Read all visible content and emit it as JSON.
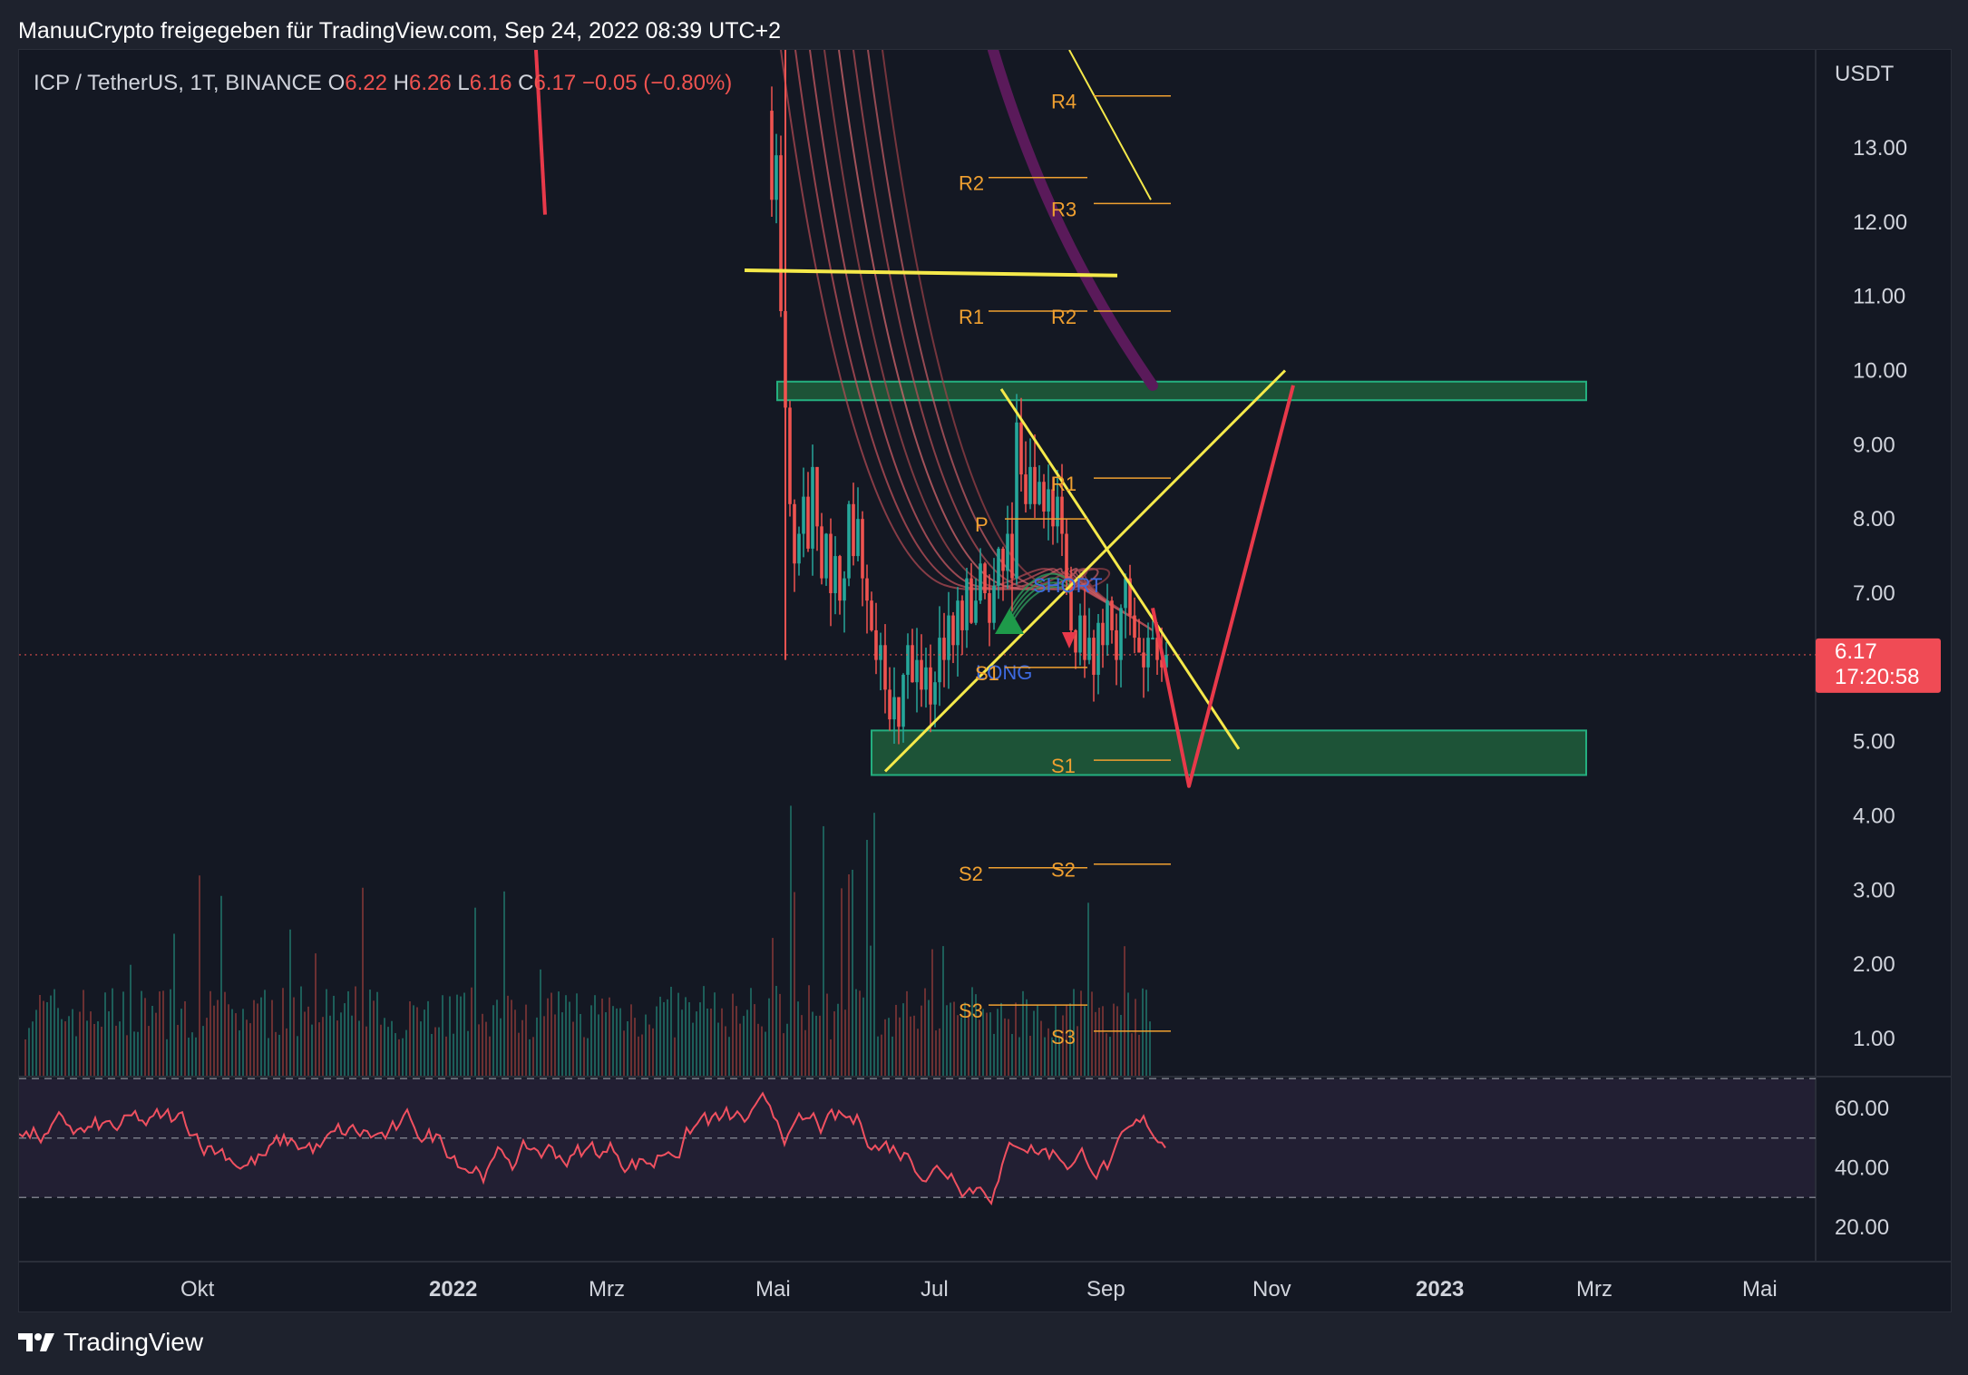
{
  "header": {
    "credit": "ManuuCrypto freigegeben für TradingView.com, Sep 24, 2022 08:39 UTC+2"
  },
  "legend": {
    "symbol": "ICP / TetherUS, 1T, BINANCE",
    "open_label": "O",
    "open": "6.22",
    "high_label": "H",
    "high": "6.26",
    "low_label": "L",
    "low": "6.16",
    "close_label": "C",
    "close": "6.17",
    "change": "−0.05 (−0.80%)"
  },
  "price_axis": {
    "currency": "USDT",
    "ticks": [
      "13.00",
      "12.00",
      "11.00",
      "10.00",
      "9.00",
      "8.00",
      "7.00",
      "5.00",
      "4.00",
      "3.00",
      "2.00",
      "1.00"
    ],
    "last_price": "6.17",
    "countdown": "17:20:58"
  },
  "rsi_axis": {
    "ticks": [
      "60.00",
      "40.00",
      "20.00"
    ]
  },
  "time_axis": {
    "labels": [
      "Okt",
      "2022",
      "Mrz",
      "Mai",
      "Jul",
      "Sep",
      "Nov",
      "2023",
      "Mrz",
      "Mai"
    ]
  },
  "annotations": {
    "pivots_left": [
      "R2",
      "R1",
      "P",
      "S1",
      "S2",
      "S3"
    ],
    "pivots_right": [
      "R4",
      "R3",
      "R2",
      "R1",
      "S1",
      "S2",
      "S3"
    ],
    "long_label": "LONG",
    "short_label": "SHORT"
  },
  "footer": {
    "brand": "TradingView"
  },
  "colors": {
    "background": "#141823",
    "up": "#26a69a",
    "down": "#ef5350",
    "yellow": "#f5e94a",
    "orange": "#f0a030",
    "zone": "#1e5a3a",
    "zone_border": "#26c08a",
    "purple": "#5a1a5a",
    "rsi_line": "#f05060"
  },
  "chart_data": {
    "type": "candlestick",
    "symbol": "ICP / TetherUS",
    "timeframe": "1T",
    "exchange": "BINANCE",
    "ohlc_last": {
      "open": 6.22,
      "high": 6.26,
      "low": 6.16,
      "close": 6.17
    },
    "change": -0.05,
    "change_pct": -0.8,
    "ylim": [
      0.6,
      14
    ],
    "key_levels": {
      "resistance_zone": [
        9.6,
        9.85
      ],
      "support_zone": [
        4.55,
        5.15
      ],
      "horizontal_line": 11.3
    },
    "pivot_levels_left": {
      "R2": 12.6,
      "R1": 10.8,
      "P": 8.0,
      "S1": 6.0,
      "S2": 3.3,
      "S3": 1.45
    },
    "pivot_levels_right": {
      "R4": 13.7,
      "R3": 12.25,
      "R2": 10.8,
      "R1": 8.55,
      "S1": 4.75,
      "S2": 3.35,
      "S3": 1.1
    },
    "rsi": {
      "ylim": [
        15,
        75
      ],
      "bands": [
        30,
        50,
        70
      ]
    },
    "x_axis_labels": [
      "Okt",
      "2022",
      "Mrz",
      "Mai",
      "Jul",
      "Sep",
      "Nov",
      "2023",
      "Mrz",
      "Mai"
    ]
  }
}
